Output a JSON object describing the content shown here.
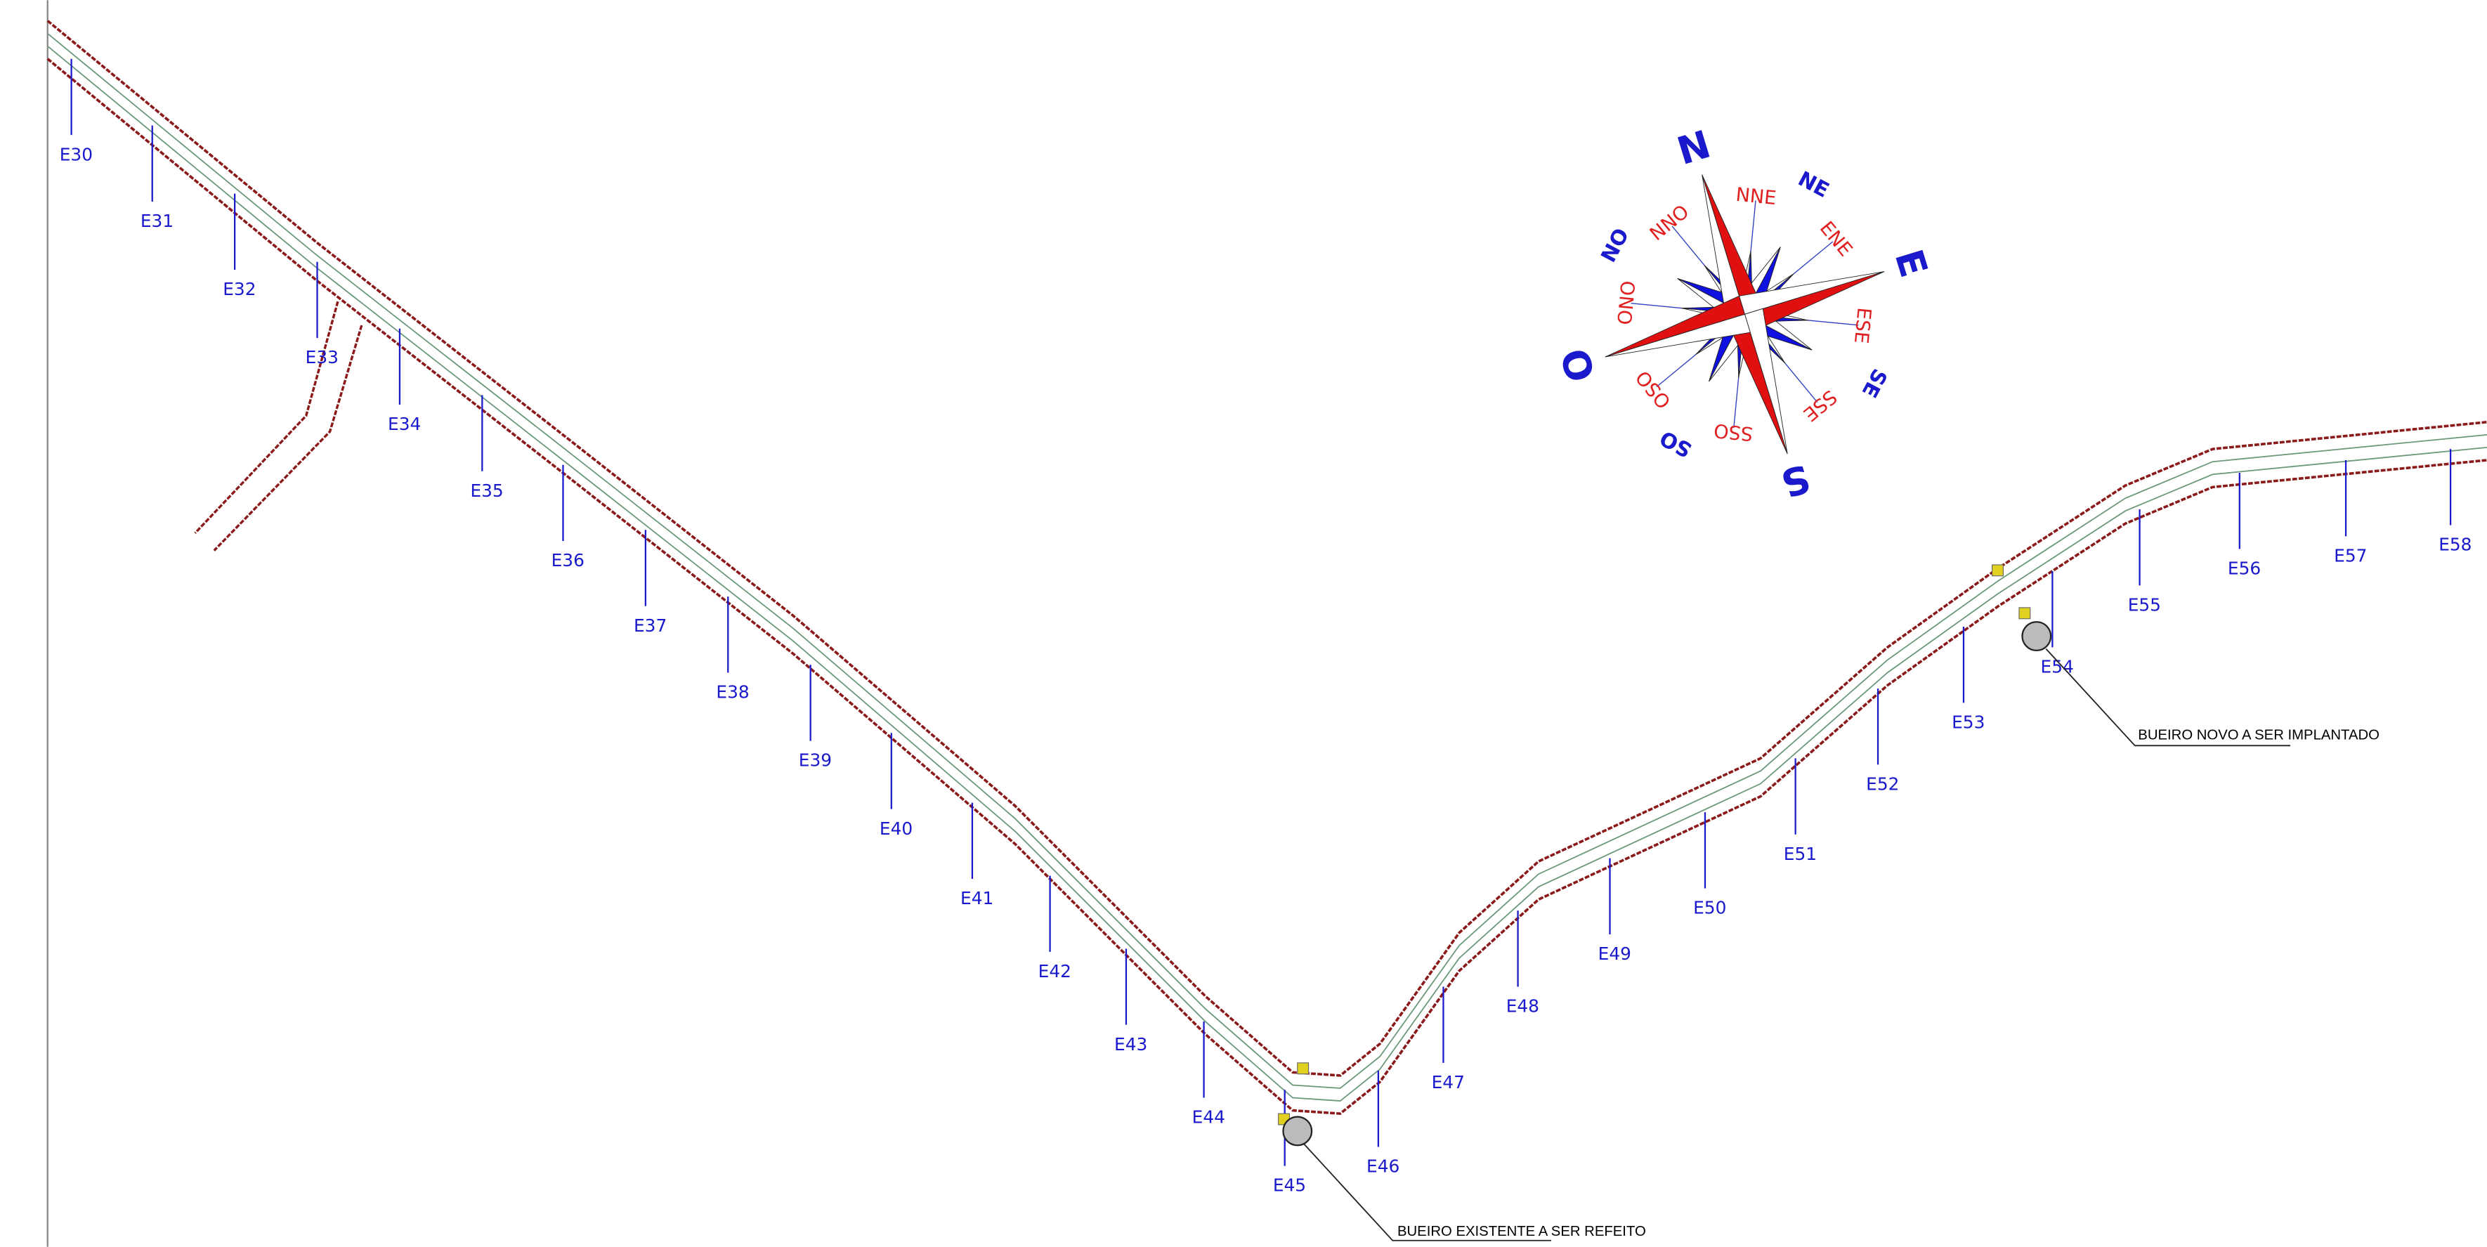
{
  "stations": [
    "E30",
    "E31",
    "E32",
    "E33",
    "E34",
    "E35",
    "E36",
    "E37",
    "E38",
    "E39",
    "E40",
    "E41",
    "E42",
    "E43",
    "E44",
    "E45",
    "E46",
    "E47",
    "E48",
    "E49",
    "E50",
    "E51",
    "E52",
    "E53",
    "E54",
    "E55",
    "E56",
    "E57",
    "E58"
  ],
  "compass": {
    "main": [
      "N",
      "E",
      "S",
      "O"
    ],
    "inter": [
      "NE",
      "SE",
      "SO",
      "NO"
    ],
    "minor": [
      "NNE",
      "ENE",
      "ESE",
      "SSE",
      "SSO",
      "OSO",
      "ONO",
      "NNO"
    ]
  },
  "annotations": [
    "BUEIRO EXISTENTE A SER REFEITO",
    "BUEIRO NOVO A SER IMPLANTADO"
  ]
}
